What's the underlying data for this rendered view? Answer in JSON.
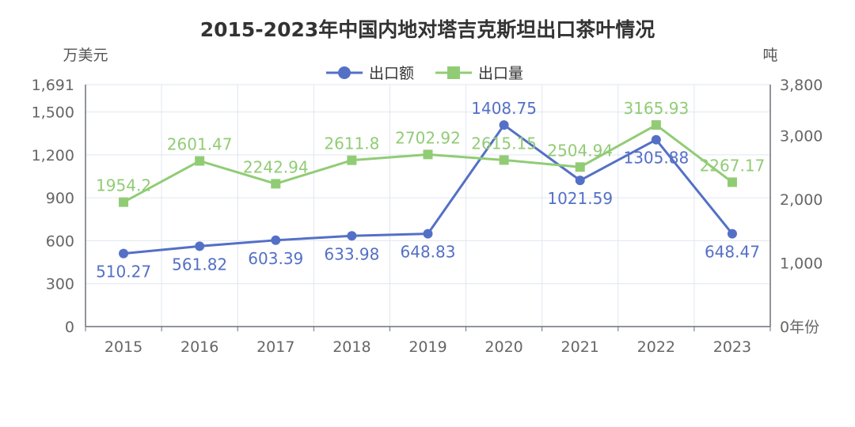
{
  "chart_data": {
    "type": "line",
    "title": "2015-2023年中国内地对塔吉克斯坦出口茶叶情况",
    "categories": [
      "2015",
      "2016",
      "2017",
      "2018",
      "2019",
      "2020",
      "2021",
      "2022",
      "2023"
    ],
    "left_axis": {
      "name": "万美元",
      "ylim": [
        0,
        1691
      ],
      "ticks": [
        0,
        300,
        600,
        900,
        1200,
        1500,
        1691
      ],
      "tick_labels": [
        "0",
        "300",
        "600",
        "900",
        "1,200",
        "1,500",
        "1,691"
      ]
    },
    "right_axis": {
      "name": "吨",
      "ylim": [
        0,
        3800
      ],
      "ticks": [
        0,
        1000,
        2000,
        3000,
        3800
      ],
      "tick_labels": [
        "0年份",
        "1,000",
        "2,000",
        "3,000",
        "3,800"
      ]
    },
    "legend_position": "top-center",
    "grid": true,
    "series": [
      {
        "name": "出口额",
        "axis": "left",
        "color": "#5470c6",
        "marker": "circle",
        "values": [
          510.27,
          561.82,
          603.39,
          633.98,
          648.83,
          1408.75,
          1021.59,
          1305.88,
          648.47
        ],
        "labels": [
          "510.27",
          "561.82",
          "603.39",
          "633.98",
          "648.83",
          "1408.75",
          "1021.59",
          "1305.88",
          "648.47"
        ],
        "label_side": [
          "below",
          "below",
          "below",
          "below",
          "below",
          "above",
          "below",
          "below",
          "below"
        ]
      },
      {
        "name": "出口量",
        "axis": "right",
        "color": "#91cc75",
        "marker": "square",
        "values": [
          1954.2,
          2601.47,
          2242.94,
          2611.8,
          2702.92,
          2615.15,
          2504.94,
          3165.93,
          2267.17
        ],
        "labels": [
          "1954.2",
          "2601.47",
          "2242.94",
          "2611.8",
          "2702.92",
          "2615.15",
          "2504.94",
          "3165.93",
          "2267.17"
        ],
        "label_side": [
          "above",
          "above",
          "above",
          "above",
          "above",
          "above",
          "above",
          "above",
          "above"
        ]
      }
    ]
  }
}
